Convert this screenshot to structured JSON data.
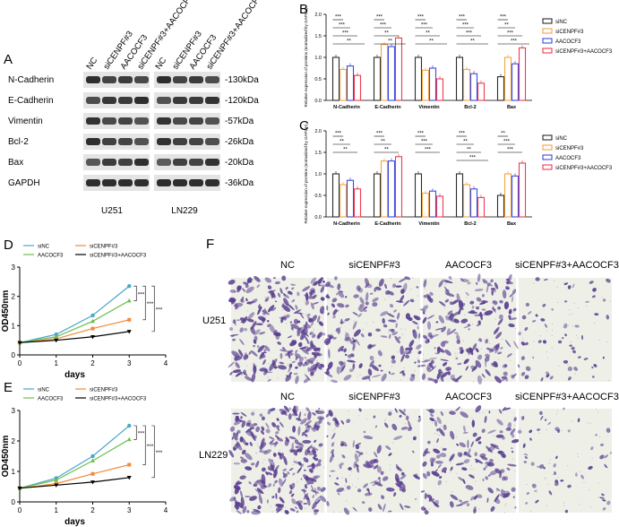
{
  "figure": {
    "panels": {
      "a": "A",
      "b": "B",
      "c": "C",
      "d": "D",
      "e": "E",
      "f": "F"
    },
    "blot": {
      "lanes": [
        "NC",
        "siCENPF#3",
        "AACOCF3",
        "siCENPF#3+AACOCF3",
        "NC",
        "siCENPF#3",
        "AACOCF3",
        "siCENPF#3+AACOCF3"
      ],
      "rows": [
        {
          "protein": "N-Cadherin",
          "size": "-130kDa"
        },
        {
          "protein": "E-Cadherin",
          "size": "-120kDa"
        },
        {
          "protein": "Vimentin",
          "size": "-57kDa"
        },
        {
          "protein": "Bcl-2",
          "size": "-26kDa"
        },
        {
          "protein": "Bax",
          "size": "-20kDa"
        },
        {
          "protein": "GAPDH",
          "size": "-36kDa"
        }
      ],
      "cell_lines": [
        "U251",
        "LN229"
      ]
    },
    "transwell": {
      "columns": [
        "NC",
        "siCENPF#3",
        "AACOCF3",
        "siCENPF#3+AACOCF3"
      ],
      "rows": [
        "U251",
        "LN229"
      ]
    },
    "colors": {
      "siNC": "#2b2b2b",
      "siCENPF": "#f5a442",
      "AACOCF3": "#3a4be0",
      "combo": "#ef3b4f",
      "d_siNC": "#4aa6c9",
      "d_si": "#f08a3c",
      "d_AA": "#6cbf4b",
      "d_combo": "#000000",
      "stain": "#5a3f8f"
    }
  },
  "chart_data": [
    {
      "id": "B",
      "type": "bar",
      "ylabel": "Relative expression of proteins (normalized by GAPDH)",
      "ylim": [
        0,
        2.0
      ],
      "yticks": [
        "0.0",
        "0.5",
        "1.0",
        "1.5",
        "2.0"
      ],
      "categories": [
        "N-Cadherin",
        "E-Cadherin",
        "Vimentin",
        "Bcl-2",
        "Bax"
      ],
      "series": [
        {
          "name": "siNC",
          "values": [
            1.0,
            1.0,
            1.0,
            1.0,
            0.55
          ]
        },
        {
          "name": "siCENPF#3",
          "values": [
            0.72,
            1.3,
            0.7,
            0.72,
            1.0
          ]
        },
        {
          "name": "AACOCF3",
          "values": [
            0.8,
            1.25,
            0.75,
            0.62,
            0.85
          ]
        },
        {
          "name": "siCENPF#3+AACOCF3",
          "values": [
            0.58,
            1.45,
            0.5,
            0.4,
            1.22
          ]
        }
      ],
      "sig": [
        "***",
        "***",
        "***",
        "**",
        "***",
        "***",
        "**",
        "**",
        "***",
        "***",
        "**",
        "**",
        "***",
        "***",
        "***",
        "**",
        "***",
        "**",
        "***",
        "***"
      ]
    },
    {
      "id": "C",
      "type": "bar",
      "ylabel": "Relative expression of proteins (normalized by GAPDH)",
      "ylim": [
        0,
        2.0
      ],
      "yticks": [
        "0.0",
        "0.5",
        "1.0",
        "1.5",
        "2.0"
      ],
      "categories": [
        "N-Cadherin",
        "E-Cadherin",
        "Vimentin",
        "Bcl-2",
        "Bax"
      ],
      "series": [
        {
          "name": "siNC",
          "values": [
            1.0,
            1.0,
            1.0,
            1.0,
            0.5
          ]
        },
        {
          "name": "siCENPF#3",
          "values": [
            0.75,
            1.3,
            0.55,
            0.75,
            1.0
          ]
        },
        {
          "name": "AACOCF3",
          "values": [
            0.85,
            1.3,
            0.6,
            0.65,
            0.95
          ]
        },
        {
          "name": "siCENPF#3+AACOCF3",
          "values": [
            0.65,
            1.4,
            0.48,
            0.45,
            1.25
          ]
        }
      ],
      "sig": [
        "***",
        "**",
        "**",
        "***",
        "**",
        "**",
        "***",
        "***",
        "***",
        "***",
        "**",
        "**",
        "***",
        "**",
        "***",
        "***"
      ]
    },
    {
      "id": "D",
      "type": "line",
      "xlabel": "days",
      "ylabel": "OD450nm",
      "xlim": [
        0,
        4
      ],
      "ylim": [
        0,
        3
      ],
      "xticks": [
        "0",
        "1",
        "2",
        "3",
        "4"
      ],
      "yticks": [
        "0",
        "1",
        "2",
        "3"
      ],
      "x": [
        0,
        1,
        2,
        3
      ],
      "series": [
        {
          "name": "siNC",
          "values": [
            0.42,
            0.7,
            1.35,
            2.35
          ]
        },
        {
          "name": "siCENPF#3",
          "values": [
            0.42,
            0.55,
            0.9,
            1.2
          ]
        },
        {
          "name": "AACOCF3",
          "values": [
            0.42,
            0.62,
            1.15,
            1.85
          ]
        },
        {
          "name": "siCENPF#3+AACOCF3",
          "values": [
            0.42,
            0.5,
            0.62,
            0.8
          ]
        }
      ],
      "sig": [
        "***",
        "***",
        "***"
      ]
    },
    {
      "id": "E",
      "type": "line",
      "xlabel": "days",
      "ylabel": "OD450nm",
      "xlim": [
        0,
        4
      ],
      "ylim": [
        0,
        3
      ],
      "xticks": [
        "0",
        "1",
        "2",
        "3",
        "4"
      ],
      "yticks": [
        "0",
        "1",
        "2",
        "3"
      ],
      "x": [
        0,
        1,
        2,
        3
      ],
      "series": [
        {
          "name": "siNC",
          "values": [
            0.45,
            0.78,
            1.5,
            2.5
          ]
        },
        {
          "name": "siCENPF#3",
          "values": [
            0.45,
            0.6,
            0.92,
            1.22
          ]
        },
        {
          "name": "AACOCF3",
          "values": [
            0.45,
            0.72,
            1.35,
            2.05
          ]
        },
        {
          "name": "siCENPF#3+AACOCF3",
          "values": [
            0.45,
            0.55,
            0.65,
            0.8
          ]
        }
      ],
      "sig": [
        "***",
        "***",
        "***"
      ]
    }
  ]
}
